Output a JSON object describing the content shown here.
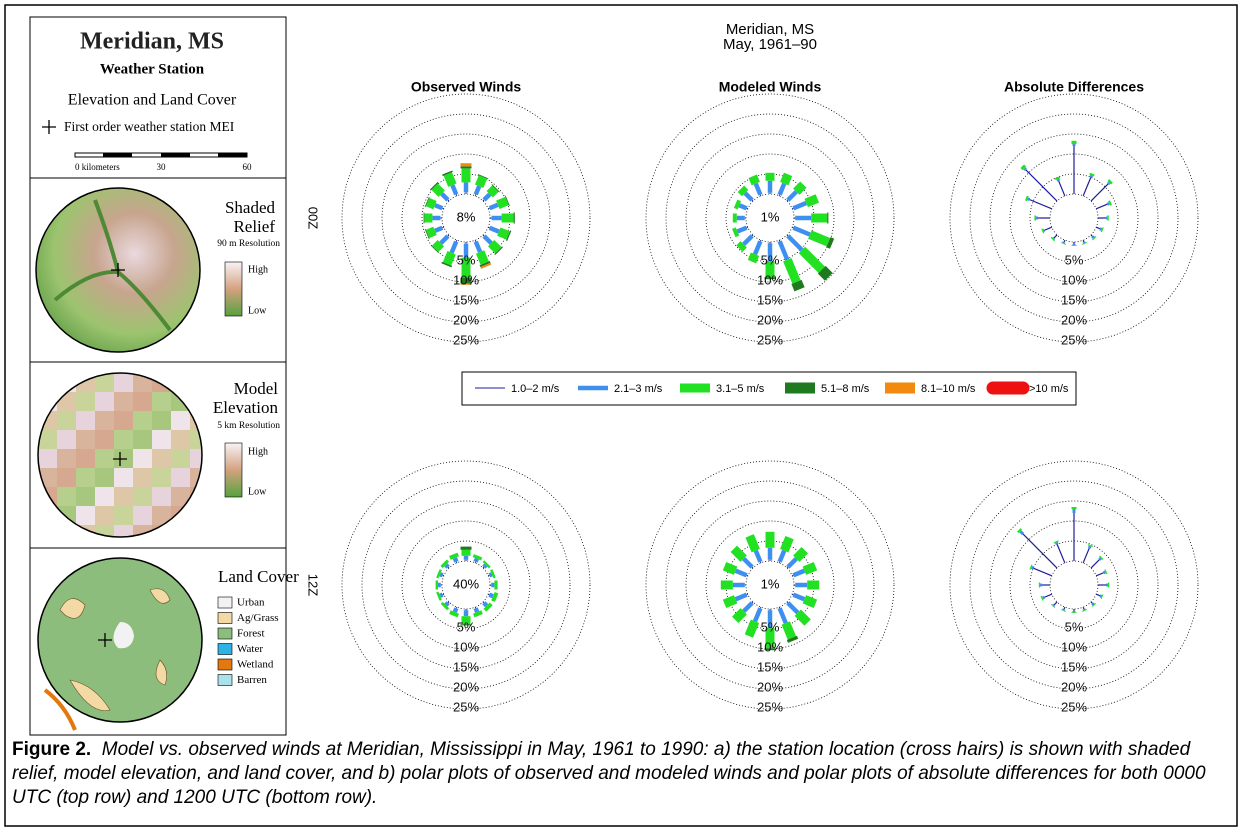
{
  "header": {
    "title": "Meridian, MS",
    "subtitle": "May, 1961–90"
  },
  "columns": [
    "Observed Winds",
    "Modeled Winds",
    "Absolute Differences"
  ],
  "row_labels": [
    "00Z",
    "12Z"
  ],
  "map_panel": {
    "title": "Meridian, MS",
    "subtitle": "Weather Station",
    "heading": "Elevation and Land Cover",
    "marker_label": "First order weather station  MEI",
    "scale": [
      "0 kilometers",
      "30",
      "60"
    ],
    "relief": {
      "title": [
        "Shaded",
        "Relief"
      ],
      "note": "90 m Resolution",
      "high": "High",
      "low": "Low"
    },
    "model": {
      "title": [
        "Model",
        "Elevation"
      ],
      "note": "5 km Resolution",
      "high": "High",
      "low": "Low"
    },
    "land": {
      "title": "Land Cover",
      "classes": [
        {
          "name": "Urban",
          "color": "#f2f2f2"
        },
        {
          "name": "Ag/Grass",
          "color": "#f3d9a4"
        },
        {
          "name": "Forest",
          "color": "#8dbd7c"
        },
        {
          "name": "Water",
          "color": "#2fb2e6"
        },
        {
          "name": "Wetland",
          "color": "#e3780f"
        },
        {
          "name": "Barren",
          "color": "#a9e2ea"
        }
      ]
    }
  },
  "caption": {
    "label": "Figure 2.",
    "text": "Model vs. observed winds at Meridian, Mississippi in May, 1961 to 1990: a) the station location (cross hairs) is shown with shaded relief, model elevation, and land cover, and b) polar plots of observed and modeled winds and polar plots of absolute differences for both 0000 UTC (top row) and 1200 UTC (bottom row)."
  },
  "chart_data": [
    {
      "type": "windrose",
      "calm_label": "8%",
      "rlim": [
        0,
        25
      ],
      "rticks": [
        {
          "value": 5,
          "label": "5%"
        },
        {
          "value": 10,
          "label": "10%"
        },
        {
          "value": 15,
          "label": "15%"
        },
        {
          "value": 20,
          "label": "20%"
        },
        {
          "value": 25,
          "label": "25%"
        }
      ],
      "series": [
        {
          "name": "1.0–2 m/s",
          "color": "#1c1c9c",
          "values": [
            0.4,
            0.4,
            0.4,
            0.4,
            0.4,
            0.4,
            0.4,
            0.4,
            0.4,
            0.4,
            0.4,
            0.4,
            0.4,
            0.4,
            0.4,
            0.4
          ]
        },
        {
          "name": "2.1–3 m/s",
          "color": "#3d8ff0",
          "values": [
            2.5,
            2.2,
            2,
            2.2,
            2.5,
            2.5,
            2.5,
            2.8,
            3.5,
            3,
            2.5,
            2,
            2,
            2,
            2.2,
            2.5
          ]
        },
        {
          "name": "3.1–5 m/s",
          "color": "#22e022",
          "values": [
            3.5,
            2.5,
            2,
            2.5,
            3,
            2.5,
            2.5,
            3,
            5,
            3,
            2,
            2,
            2,
            2,
            2.5,
            3
          ]
        },
        {
          "name": "5.1–8 m/s",
          "color": "#1f7a1f",
          "values": [
            0.5,
            0.2,
            0.2,
            0.2,
            0.3,
            0.3,
            0.3,
            0.5,
            1.5,
            0.4,
            0.2,
            0.2,
            0.2,
            0.2,
            0.3,
            0.4
          ]
        },
        {
          "name": "8.1–10 m/s",
          "color": "#f28a10",
          "values": [
            0.8,
            0,
            0,
            0,
            0,
            0,
            0,
            0.5,
            0.3,
            0,
            0,
            0,
            0,
            0,
            0,
            0
          ]
        },
        {
          "name": ">10 m/s",
          "color": "#ee1111",
          "values": [
            0,
            0,
            0,
            0,
            0,
            0,
            0,
            0,
            0,
            0,
            0,
            0,
            0,
            0,
            0,
            0
          ]
        }
      ]
    },
    {
      "type": "windrose",
      "calm_label": "1%",
      "rlim": [
        0,
        25
      ],
      "rticks": [
        {
          "value": 5,
          "label": "5%"
        },
        {
          "value": 10,
          "label": "10%"
        },
        {
          "value": 15,
          "label": "15%"
        },
        {
          "value": 20,
          "label": "20%"
        },
        {
          "value": 25,
          "label": "25%"
        }
      ],
      "series": [
        {
          "name": "1.0–2 m/s",
          "color": "#1c1c9c",
          "values": [
            0.3,
            0.3,
            0.3,
            0.3,
            0.3,
            0.3,
            0.3,
            0.3,
            0.3,
            0.3,
            0.3,
            0.3,
            0.3,
            0.3,
            0.3,
            0.3
          ]
        },
        {
          "name": "2.1–3 m/s",
          "color": "#3d8ff0",
          "values": [
            3,
            3,
            3,
            3.5,
            4,
            4.5,
            5,
            5,
            4.5,
            3.5,
            3,
            2.5,
            2,
            2,
            2.5,
            3
          ]
        },
        {
          "name": "3.1–5 m/s",
          "color": "#22e022",
          "values": [
            2,
            2.5,
            2.5,
            3,
            4,
            5,
            7,
            6,
            4,
            2,
            1.5,
            1,
            1,
            1,
            1.5,
            2
          ]
        },
        {
          "name": "5.1–8 m/s",
          "color": "#1f7a1f",
          "values": [
            0,
            0,
            0,
            0,
            0.3,
            1,
            2.5,
            2,
            0.5,
            0,
            0,
            0,
            0,
            0,
            0,
            0
          ]
        },
        {
          "name": "8.1–10 m/s",
          "color": "#f28a10",
          "values": [
            0,
            0,
            0,
            0,
            0,
            0,
            0,
            0,
            0,
            0,
            0,
            0,
            0,
            0,
            0,
            0
          ]
        },
        {
          "name": ">10 m/s",
          "color": "#ee1111",
          "values": [
            0,
            0,
            0,
            0,
            0,
            0,
            0,
            0,
            0,
            0,
            0,
            0,
            0,
            0,
            0,
            0
          ]
        }
      ]
    },
    {
      "type": "windrose-difference",
      "rlim": [
        0,
        25
      ],
      "rticks": [
        {
          "value": 5,
          "label": "5%"
        },
        {
          "value": 10,
          "label": "10%"
        },
        {
          "value": 15,
          "label": "15%"
        },
        {
          "value": 20,
          "label": "20%"
        },
        {
          "value": 25,
          "label": "25%"
        }
      ],
      "series": [
        {
          "name": "1.0–2 m/s",
          "color": "#1c1c9c",
          "values": [
            12,
            5,
            6,
            3,
            2,
            1,
            0.5,
            0.5,
            0.5,
            0.5,
            1,
            2,
            3,
            6,
            11,
            4
          ]
        },
        {
          "name": "2.1–3 m/s",
          "color": "#3d8ff0",
          "values": [
            0.5,
            0.5,
            0.5,
            0.5,
            0.3,
            0.5,
            0.5,
            0.3,
            0.3,
            0.3,
            0.3,
            0.3,
            0.5,
            0.5,
            0.5,
            0.5
          ]
        },
        {
          "name": "3.1–5 m/s",
          "color": "#22e022",
          "values": [
            0.8,
            0.5,
            0.6,
            0.5,
            0.4,
            0.3,
            0.3,
            0.2,
            0.2,
            0.2,
            0.3,
            0.3,
            0.4,
            0.5,
            0.8,
            0.5
          ]
        },
        {
          "name": "5.1–8 m/s",
          "color": "#1f7a1f",
          "values": [
            0,
            0,
            0,
            0,
            0,
            0,
            0,
            0,
            0,
            0,
            0,
            0,
            0,
            0,
            0,
            0
          ]
        },
        {
          "name": "8.1–10 m/s",
          "color": "#f28a10",
          "values": [
            0,
            0,
            0,
            0,
            0,
            0,
            0,
            0,
            0,
            0,
            0,
            0,
            0,
            0,
            0,
            0
          ]
        },
        {
          "name": ">10 m/s",
          "color": "#ee1111",
          "values": [
            0,
            0,
            0,
            0,
            0,
            0,
            0,
            0,
            0,
            0,
            0,
            0,
            0,
            0,
            0,
            0
          ]
        }
      ]
    },
    {
      "type": "windrose",
      "calm_label": "40%",
      "rlim": [
        0,
        25
      ],
      "rticks": [
        {
          "value": 5,
          "label": "5%"
        },
        {
          "value": 10,
          "label": "10%"
        },
        {
          "value": 15,
          "label": "15%"
        },
        {
          "value": 20,
          "label": "20%"
        },
        {
          "value": 25,
          "label": "25%"
        }
      ],
      "series": [
        {
          "name": "1.0–2 m/s",
          "color": "#1c1c9c",
          "values": [
            0.3,
            0.3,
            0.3,
            0.3,
            0.3,
            0.3,
            0.3,
            0.3,
            0.3,
            0.3,
            0.3,
            0.3,
            0.3,
            0.3,
            0.3,
            0.3
          ]
        },
        {
          "name": "2.1–3 m/s",
          "color": "#3d8ff0",
          "values": [
            1,
            0.8,
            0.7,
            0.7,
            0.8,
            1,
            1,
            1,
            1.5,
            1,
            0.8,
            0.7,
            0.7,
            0.7,
            0.8,
            1
          ]
        },
        {
          "name": "3.1–5 m/s",
          "color": "#22e022",
          "values": [
            1.5,
            0.8,
            0.6,
            0.6,
            0.8,
            1,
            1,
            1,
            2,
            1,
            0.7,
            0.6,
            0.6,
            0.6,
            0.8,
            1
          ]
        },
        {
          "name": "5.1–8 m/s",
          "color": "#1f7a1f",
          "values": [
            0.8,
            0,
            0,
            0,
            0,
            0,
            0,
            0,
            0.3,
            0,
            0,
            0,
            0,
            0,
            0,
            0
          ]
        },
        {
          "name": "8.1–10 m/s",
          "color": "#f28a10",
          "values": [
            0,
            0,
            0,
            0,
            0,
            0,
            0,
            0,
            0,
            0,
            0,
            0,
            0,
            0,
            0,
            0
          ]
        },
        {
          "name": ">10 m/s",
          "color": "#ee1111",
          "values": [
            0,
            0,
            0,
            0,
            0,
            0,
            0,
            0,
            0,
            0,
            0,
            0,
            0,
            0,
            0,
            0
          ]
        }
      ]
    },
    {
      "type": "windrose",
      "calm_label": "1%",
      "rlim": [
        0,
        25
      ],
      "rticks": [
        {
          "value": 5,
          "label": "5%"
        },
        {
          "value": 10,
          "label": "10%"
        },
        {
          "value": 15,
          "label": "15%"
        },
        {
          "value": 20,
          "label": "20%"
        },
        {
          "value": 25,
          "label": "25%"
        }
      ],
      "series": [
        {
          "name": "1.0–2 m/s",
          "color": "#1c1c9c",
          "values": [
            0.3,
            0.3,
            0.3,
            0.3,
            0.3,
            0.3,
            0.3,
            0.3,
            0.3,
            0.3,
            0.3,
            0.3,
            0.3,
            0.3,
            0.3,
            0.3
          ]
        },
        {
          "name": "2.1–3 m/s",
          "color": "#3d8ff0",
          "values": [
            3,
            3,
            3,
            3,
            3,
            3,
            3.5,
            4,
            4.5,
            3.5,
            3,
            3,
            3,
            3,
            3,
            3
          ]
        },
        {
          "name": "3.1–5 m/s",
          "color": "#22e022",
          "values": [
            4,
            3.5,
            3,
            3,
            3,
            3,
            3.5,
            4,
            5,
            4,
            3,
            3,
            3,
            3,
            3.5,
            4
          ]
        },
        {
          "name": "5.1–8 m/s",
          "color": "#1f7a1f",
          "values": [
            0,
            0,
            0,
            0,
            0,
            0,
            0,
            0.8,
            0.5,
            0,
            0,
            0,
            0,
            0,
            0,
            0
          ]
        },
        {
          "name": "8.1–10 m/s",
          "color": "#f28a10",
          "values": [
            0,
            0,
            0,
            0,
            0,
            0,
            0,
            0,
            0,
            0,
            0,
            0,
            0,
            0,
            0,
            0
          ]
        },
        {
          "name": ">10 m/s",
          "color": "#ee1111",
          "values": [
            0,
            0,
            0,
            0,
            0,
            0,
            0,
            0,
            0,
            0,
            0,
            0,
            0,
            0,
            0,
            0
          ]
        }
      ]
    },
    {
      "type": "windrose-difference",
      "rlim": [
        0,
        25
      ],
      "rticks": [
        {
          "value": 5,
          "label": "5%"
        },
        {
          "value": 10,
          "label": "10%"
        },
        {
          "value": 15,
          "label": "15%"
        },
        {
          "value": 20,
          "label": "20%"
        },
        {
          "value": 25,
          "label": "25%"
        }
      ],
      "series": [
        {
          "name": "1.0–2 m/s",
          "color": "#1c1c9c",
          "values": [
            12,
            4,
            3,
            2,
            2,
            1,
            0.5,
            0.5,
            0.5,
            0.5,
            1,
            2,
            2,
            5,
            12,
            5
          ]
        },
        {
          "name": "2.1–3 m/s",
          "color": "#3d8ff0",
          "values": [
            1,
            0.5,
            0.5,
            0.5,
            0.5,
            0.5,
            0.5,
            0.3,
            0.3,
            0.3,
            0.3,
            0.5,
            0.5,
            0.5,
            1,
            0.5
          ]
        },
        {
          "name": "3.1–5 m/s",
          "color": "#22e022",
          "values": [
            0.5,
            0.3,
            0.3,
            0.3,
            0.3,
            0.2,
            0.2,
            0.2,
            0.2,
            0.2,
            0.2,
            0.3,
            0.3,
            0.3,
            0.5,
            0.3
          ]
        },
        {
          "name": "5.1–8 m/s",
          "color": "#1f7a1f",
          "values": [
            0,
            0,
            0,
            0,
            0,
            0,
            0,
            0,
            0,
            0,
            0,
            0,
            0,
            0,
            0,
            0
          ]
        },
        {
          "name": "8.1–10 m/s",
          "color": "#f28a10",
          "values": [
            0,
            0,
            0,
            0,
            0,
            0,
            0,
            0,
            0,
            0,
            0,
            0,
            0,
            0,
            0,
            0
          ]
        },
        {
          "name": ">10 m/s",
          "color": "#ee1111",
          "values": [
            0,
            0,
            0,
            0,
            0,
            0,
            0,
            0,
            0,
            0,
            0,
            0,
            0,
            0,
            0,
            0
          ]
        }
      ]
    }
  ]
}
